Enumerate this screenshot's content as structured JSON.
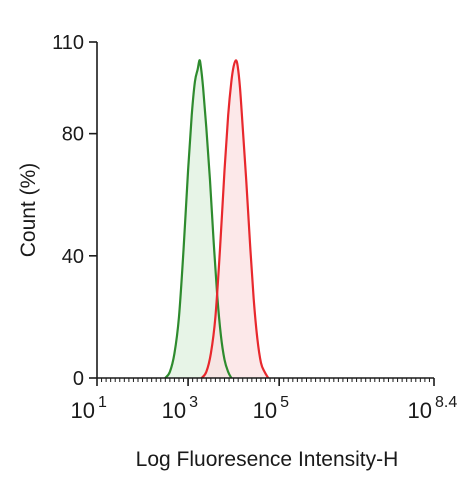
{
  "chart_data": {
    "type": "area",
    "title": "",
    "xlabel": "Log Fluoresence Intensity-H",
    "ylabel": "Count  (%)",
    "x_scale": "log10",
    "xlim_log10": [
      1,
      8.4
    ],
    "ylim": [
      0,
      110
    ],
    "grid": false,
    "legend": "none",
    "x_ticks": [
      {
        "exp": 1,
        "base": "10",
        "sup": "1"
      },
      {
        "exp": 3,
        "base": "10",
        "sup": "3"
      },
      {
        "exp": 5,
        "base": "10",
        "sup": "5"
      },
      {
        "exp": 8.4,
        "base": "10",
        "sup": "8.4"
      }
    ],
    "y_ticks": [
      0,
      40,
      80,
      110
    ],
    "series": [
      {
        "color": "#2e8b2e",
        "fill": "#dff0df",
        "points": [
          [
            2.5,
            0
          ],
          [
            2.6,
            2
          ],
          [
            2.7,
            8
          ],
          [
            2.8,
            20
          ],
          [
            2.9,
            42
          ],
          [
            3.0,
            68
          ],
          [
            3.08,
            86
          ],
          [
            3.15,
            97
          ],
          [
            3.21,
            101
          ],
          [
            3.25,
            104
          ],
          [
            3.28,
            102
          ],
          [
            3.33,
            95
          ],
          [
            3.4,
            82
          ],
          [
            3.48,
            65
          ],
          [
            3.56,
            45
          ],
          [
            3.64,
            27
          ],
          [
            3.72,
            14
          ],
          [
            3.8,
            6
          ],
          [
            3.88,
            2
          ],
          [
            3.95,
            0
          ]
        ]
      },
      {
        "color": "#e8282d",
        "fill": "#fbe0e2",
        "points": [
          [
            3.3,
            0
          ],
          [
            3.4,
            2
          ],
          [
            3.5,
            8
          ],
          [
            3.6,
            20
          ],
          [
            3.7,
            42
          ],
          [
            3.8,
            68
          ],
          [
            3.88,
            86
          ],
          [
            3.95,
            97
          ],
          [
            4.0,
            102
          ],
          [
            4.05,
            104
          ],
          [
            4.09,
            102
          ],
          [
            4.14,
            95
          ],
          [
            4.2,
            82
          ],
          [
            4.28,
            64
          ],
          [
            4.36,
            44
          ],
          [
            4.44,
            26
          ],
          [
            4.52,
            13
          ],
          [
            4.6,
            5
          ],
          [
            4.68,
            2
          ],
          [
            4.76,
            0
          ]
        ]
      }
    ]
  }
}
